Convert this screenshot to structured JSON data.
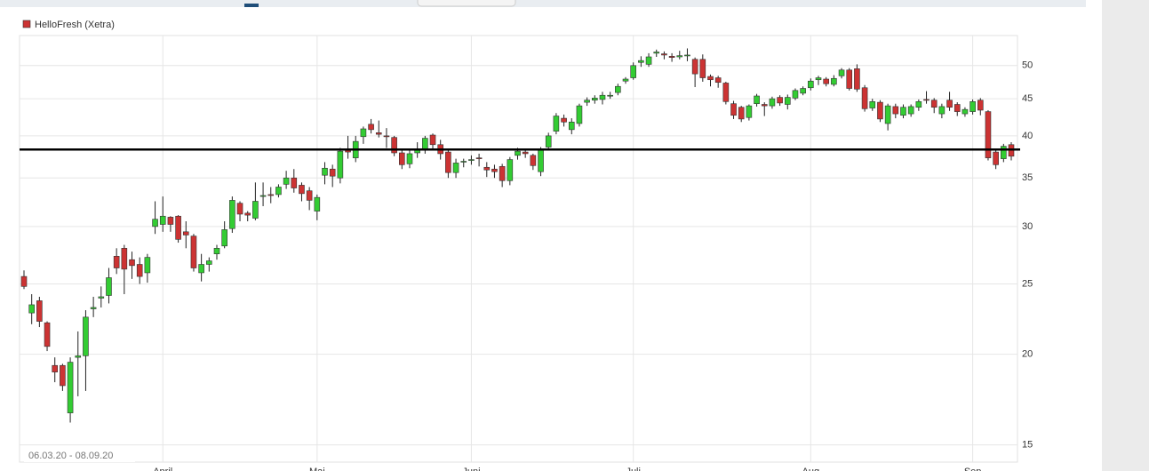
{
  "chart_data": {
    "type": "candlestick",
    "date_range": "06.03.20 - 08.09.20",
    "log_scale": true,
    "grid": true,
    "up_color": "#33cc33",
    "down_color": "#cc3333",
    "reference_line": 38.3,
    "categories": [
      null,
      null,
      null,
      null,
      null,
      null,
      null,
      null,
      null,
      null,
      null,
      null,
      null,
      null,
      null,
      null,
      null,
      null,
      null,
      null,
      null,
      null,
      null,
      null,
      null,
      null,
      null,
      null,
      null,
      null,
      null,
      null,
      null,
      null,
      null,
      null,
      null,
      null,
      null,
      null,
      null,
      null,
      null,
      null,
      null,
      null,
      null,
      null,
      null,
      null,
      null,
      null,
      null,
      null,
      null,
      null,
      null,
      null,
      null,
      null,
      null,
      null,
      null,
      null,
      null,
      null,
      null,
      null,
      null,
      null,
      null,
      null,
      null,
      null,
      null,
      null,
      null,
      null,
      null,
      null,
      null,
      null,
      null,
      null,
      null,
      null,
      null,
      null,
      null,
      null,
      null,
      null,
      null,
      null,
      null,
      null,
      null,
      null,
      null,
      null,
      null,
      null,
      null,
      null,
      null,
      null,
      null,
      null,
      null,
      null,
      null,
      null,
      null,
      null,
      null,
      null,
      null,
      null,
      null,
      null,
      null,
      null,
      null,
      null,
      null,
      null,
      null,
      null,
      null
    ],
    "xticks": [
      {
        "value": 18,
        "label": "April"
      },
      {
        "value": 38,
        "label": "Mai"
      },
      {
        "value": 58,
        "label": "Juni"
      },
      {
        "value": 79,
        "label": "Juli"
      },
      {
        "value": 102,
        "label": "Aug"
      },
      {
        "value": 123,
        "label": "Sep"
      }
    ],
    "ylim": [
      14.2,
      55
    ],
    "yticks": [
      15,
      20,
      25,
      30,
      35,
      40,
      45,
      50
    ],
    "series": [
      {
        "name": "HelloFresh (Xetra)",
        "color": "#cc3333",
        "open": [
          25.6,
          22.8,
          23.7,
          22.1,
          19.3,
          19.3,
          16.6,
          19.8,
          19.9,
          23.1,
          23.9,
          24.1,
          27.3,
          28,
          27,
          26.6,
          25.9,
          30,
          30.2,
          30.9,
          31,
          29.5,
          29.1,
          25.9,
          26.6,
          27.5,
          28.2,
          29.8,
          32.3,
          31.3,
          30.8,
          33,
          33.2,
          33.2,
          34.3,
          35,
          34.2,
          33.6,
          31.5,
          35.3,
          36,
          35,
          38.2,
          37.3,
          39.9,
          41.5,
          40.4,
          40,
          39.8,
          37.9,
          36.6,
          37.9,
          38.2,
          40.1,
          38.9,
          38,
          35.6,
          36.8,
          37,
          37.3,
          36.2,
          36,
          36.3,
          34.7,
          37.6,
          38,
          37.6,
          35.7,
          38.6,
          40.6,
          42.3,
          40.8,
          41.6,
          44.5,
          44.8,
          44.9,
          45.4,
          45.9,
          47.6,
          48.1,
          50.5,
          50.2,
          52,
          51.9,
          51.5,
          51.4,
          51.6,
          51,
          51,
          48.3,
          48.1,
          47.3,
          44.3,
          43.8,
          42.4,
          44.3,
          44.2,
          44,
          45.2,
          44.2,
          45.1,
          45.8,
          46.6,
          47.8,
          47.9,
          47.1,
          48.4,
          49.3,
          49.5,
          46.6,
          43.7,
          44.5,
          41.6,
          43.9,
          42.7,
          42.9,
          43.8,
          44.9,
          44.8,
          42.9,
          44.8,
          44.2,
          42.9,
          43.2,
          44.8,
          43.2,
          38,
          37.2,
          38.9
        ],
        "high": [
          26.1,
          24.2,
          24,
          22.2,
          19.8,
          19.4,
          19.8,
          21.5,
          23,
          24,
          24.8,
          26.3,
          28,
          28.3,
          27.7,
          27.2,
          27.5,
          32.5,
          33,
          31,
          31.1,
          30.5,
          29.3,
          27.5,
          27.2,
          28.3,
          30.5,
          33,
          32.5,
          31.5,
          34.5,
          34.5,
          34,
          34.3,
          35.8,
          36,
          34.5,
          34,
          33.2,
          36.8,
          36.5,
          38.5,
          40,
          40,
          41.2,
          42.2,
          42,
          41,
          40,
          38.2,
          38.2,
          39.2,
          40,
          40.3,
          39.5,
          38.3,
          37.2,
          37.2,
          37.6,
          37.8,
          36.8,
          36.5,
          36.6,
          37.4,
          38.5,
          38.3,
          37.8,
          38.6,
          40.4,
          43,
          42.8,
          42.3,
          44.3,
          45.2,
          45.5,
          46,
          46,
          47.2,
          48.2,
          50.5,
          51.5,
          52,
          52.6,
          52.3,
          52,
          52.4,
          52.8,
          51.3,
          51.8,
          48.6,
          48.4,
          47.5,
          44.7,
          44,
          44.2,
          45.7,
          44.5,
          45.3,
          45.5,
          45.6,
          46.5,
          46.8,
          48,
          48.4,
          48.2,
          48.5,
          49.6,
          49.6,
          50.2,
          47,
          45,
          44.8,
          44.3,
          44.3,
          44.2,
          44.2,
          44.9,
          46.1,
          45.1,
          44.3,
          46,
          44.5,
          43.8,
          44.9,
          45.1,
          43.4,
          38.3,
          39,
          39.2
        ],
        "low": [
          24.6,
          22,
          21.8,
          20.2,
          18.3,
          17.8,
          16.1,
          17.5,
          17.8,
          22.5,
          23.2,
          23.5,
          25.8,
          24.2,
          25.4,
          25,
          25.1,
          29.3,
          29.5,
          29.5,
          28.5,
          28,
          26,
          25.2,
          26,
          27,
          28,
          29.4,
          30.5,
          30.5,
          30.6,
          32,
          32.3,
          32.9,
          33.8,
          33.4,
          32.5,
          31.6,
          30.6,
          34.3,
          34,
          34.4,
          37.2,
          36.8,
          39,
          40.3,
          39.8,
          38.5,
          37.5,
          36,
          36.1,
          37.3,
          37.8,
          38.4,
          37.1,
          35,
          35,
          36.2,
          36.5,
          36.3,
          35.1,
          35,
          34,
          34.2,
          37.1,
          37.3,
          35.9,
          35.2,
          38.2,
          40.2,
          41.2,
          40.2,
          41.2,
          44,
          44.3,
          44.2,
          45,
          45.5,
          47.2,
          47.8,
          49.8,
          49.8,
          51.4,
          51,
          50.6,
          51,
          50.7,
          46.7,
          47.5,
          46.8,
          46.6,
          44.2,
          42.2,
          41.8,
          42,
          43.9,
          42.6,
          43.6,
          44,
          43.5,
          44.8,
          45.5,
          46.2,
          47,
          46.8,
          46.8,
          48,
          46.2,
          46,
          43.2,
          43.3,
          41.8,
          40.7,
          42.3,
          42.3,
          42.5,
          43.3,
          44.3,
          43,
          42.3,
          43.3,
          42.6,
          42.5,
          42.8,
          42.7,
          37,
          36,
          36.8,
          37
        ],
        "close": [
          24.8,
          23.4,
          22.2,
          20.5,
          18.9,
          18.1,
          19.5,
          19.9,
          22.5,
          23.2,
          24,
          25.5,
          26.3,
          26.2,
          26.5,
          25.6,
          27.2,
          30.7,
          31,
          30.2,
          28.8,
          29.2,
          26.3,
          26.6,
          26.9,
          28,
          29.7,
          32.6,
          31.2,
          31.1,
          32.5,
          33.1,
          33.1,
          34,
          35,
          33.9,
          33.3,
          32.6,
          32.9,
          36.1,
          35.2,
          38.1,
          38,
          39.3,
          40.9,
          40.8,
          40.2,
          39.9,
          37.9,
          36.5,
          37.8,
          38.4,
          39.7,
          38.9,
          37.8,
          35.6,
          36.7,
          36.9,
          37.1,
          37.2,
          35.9,
          35.7,
          34.7,
          37.1,
          38.1,
          37.8,
          36.4,
          38.2,
          40,
          42.6,
          41.8,
          41.8,
          44,
          44.8,
          45.1,
          45.5,
          45.5,
          46.8,
          47.9,
          50,
          50.8,
          51.4,
          52.2,
          51.7,
          51.3,
          51.6,
          51.7,
          48.7,
          48.1,
          47.8,
          47.4,
          44.6,
          42.7,
          42.2,
          44,
          45.4,
          44,
          45,
          44.4,
          45.2,
          46.2,
          46.5,
          47.6,
          48.1,
          47.2,
          48,
          49.3,
          46.5,
          46.4,
          43.6,
          44.6,
          42.2,
          44,
          42.9,
          43.8,
          43.9,
          44.6,
          44.8,
          43.8,
          43.9,
          43.8,
          43.2,
          43.5,
          44.6,
          43.4,
          37.3,
          36.5,
          38.7,
          37.5
        ]
      }
    ]
  }
}
